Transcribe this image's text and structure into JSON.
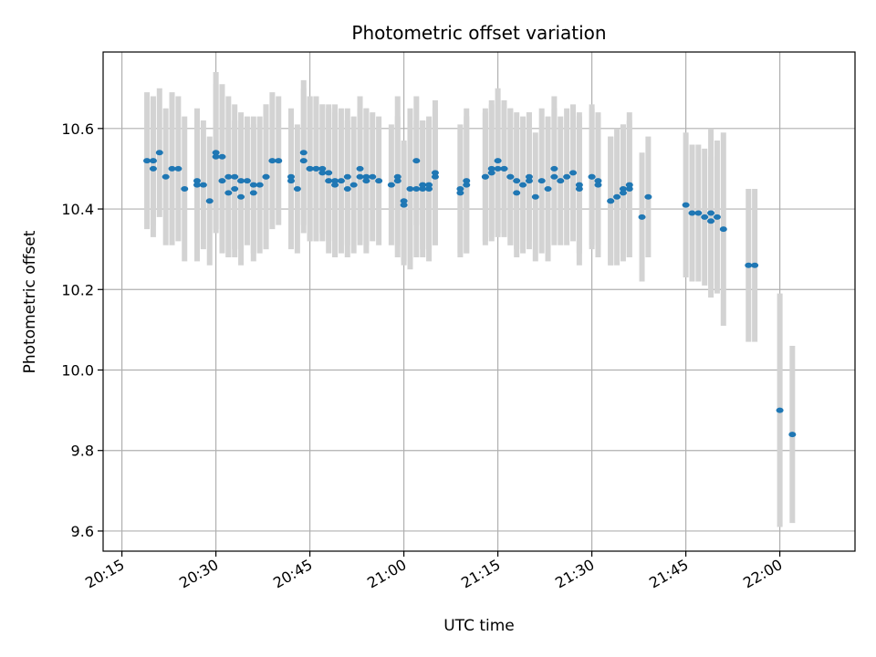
{
  "chart_data": {
    "type": "scatter",
    "title": "Photometric offset variation",
    "xlabel": "UTC time",
    "ylabel": "Photometric offset",
    "xlim": [
      "20:12",
      "22:12"
    ],
    "ylim": [
      9.55,
      10.79
    ],
    "x_ticks": [
      "20:15",
      "20:30",
      "20:45",
      "21:00",
      "21:15",
      "21:30",
      "21:45",
      "22:00"
    ],
    "y_ticks": [
      "9.6",
      "9.8",
      "10.0",
      "10.2",
      "10.4",
      "10.6"
    ],
    "grid": true,
    "colors": {
      "point": "#1f77b4",
      "errorbar": "#d3d3d3",
      "grid": "#b0b0b0"
    },
    "series": [
      {
        "x": [
          "20:19",
          "20:20",
          "20:20",
          "20:21",
          "20:22",
          "20:23",
          "20:24",
          "20:25",
          "20:27",
          "20:27",
          "20:28",
          "20:29",
          "20:30",
          "20:30",
          "20:31",
          "20:31",
          "20:32",
          "20:32",
          "20:33",
          "20:33",
          "20:34",
          "20:34",
          "20:35",
          "20:36",
          "20:36",
          "20:37",
          "20:38",
          "20:38",
          "20:39",
          "20:40",
          "20:42",
          "20:42",
          "20:43",
          "20:44",
          "20:44",
          "20:45",
          "20:45",
          "20:46",
          "20:46",
          "20:47",
          "20:47",
          "20:48",
          "20:48",
          "20:49",
          "20:49",
          "20:50",
          "20:51",
          "20:51",
          "20:52",
          "20:53",
          "20:53",
          "20:54",
          "20:54",
          "20:55",
          "20:56",
          "20:58",
          "20:59",
          "20:59",
          "21:00",
          "21:00",
          "21:01",
          "21:02",
          "21:02",
          "21:03",
          "21:03",
          "21:04",
          "21:04",
          "21:05",
          "21:05",
          "21:09",
          "21:09",
          "21:10",
          "21:10",
          "21:13",
          "21:13",
          "21:14",
          "21:14",
          "21:15",
          "21:15",
          "21:16",
          "21:16",
          "21:17",
          "21:17",
          "21:18",
          "21:18",
          "21:19",
          "21:20",
          "21:20",
          "21:21",
          "21:22",
          "21:23",
          "21:24",
          "21:24",
          "21:25",
          "21:26",
          "21:27",
          "21:28",
          "21:28",
          "21:30",
          "21:30",
          "21:31",
          "21:31",
          "21:33",
          "21:33",
          "21:34",
          "21:35",
          "21:35",
          "21:36",
          "21:36",
          "21:38",
          "21:39",
          "21:45",
          "21:46",
          "21:47",
          "21:48",
          "21:49",
          "21:49",
          "21:50",
          "21:51",
          "21:55",
          "21:56",
          "22:00",
          "22:02"
        ],
        "y": [
          10.52,
          10.5,
          10.52,
          10.54,
          10.48,
          10.5,
          10.5,
          10.45,
          10.47,
          10.46,
          10.46,
          10.42,
          10.53,
          10.54,
          10.53,
          10.47,
          10.48,
          10.44,
          10.45,
          10.48,
          10.47,
          10.43,
          10.47,
          10.44,
          10.46,
          10.46,
          10.48,
          10.48,
          10.52,
          10.52,
          10.47,
          10.48,
          10.45,
          10.54,
          10.52,
          10.5,
          10.5,
          10.5,
          10.5,
          10.5,
          10.49,
          10.49,
          10.47,
          10.46,
          10.47,
          10.47,
          10.48,
          10.45,
          10.46,
          10.48,
          10.5,
          10.48,
          10.47,
          10.48,
          10.47,
          10.46,
          10.47,
          10.48,
          10.41,
          10.42,
          10.45,
          10.52,
          10.45,
          10.45,
          10.46,
          10.45,
          10.46,
          10.49,
          10.48,
          10.45,
          10.44,
          10.47,
          10.46,
          10.48,
          10.48,
          10.49,
          10.5,
          10.52,
          10.5,
          10.5,
          10.5,
          10.48,
          10.48,
          10.47,
          10.44,
          10.46,
          10.47,
          10.48,
          10.43,
          10.47,
          10.45,
          10.5,
          10.48,
          10.47,
          10.48,
          10.49,
          10.45,
          10.46,
          10.48,
          10.48,
          10.47,
          10.46,
          10.42,
          10.42,
          10.43,
          10.45,
          10.44,
          10.45,
          10.46,
          10.38,
          10.43,
          10.41,
          10.39,
          10.39,
          10.38,
          10.37,
          10.39,
          10.38,
          10.35,
          10.26,
          10.26,
          9.9,
          9.84
        ],
        "err": [
          0.17,
          0.17,
          0.16,
          0.16,
          0.17,
          0.19,
          0.18,
          0.18,
          0.17,
          0.19,
          0.16,
          0.16,
          0.18,
          0.2,
          0.18,
          0.18,
          0.2,
          0.16,
          0.17,
          0.18,
          0.17,
          0.17,
          0.16,
          0.17,
          0.17,
          0.17,
          0.18,
          0.18,
          0.17,
          0.16,
          0.17,
          0.17,
          0.16,
          0.18,
          0.18,
          0.18,
          0.18,
          0.18,
          0.18,
          0.16,
          0.17,
          0.17,
          0.18,
          0.18,
          0.19,
          0.18,
          0.17,
          0.17,
          0.17,
          0.17,
          0.18,
          0.17,
          0.18,
          0.16,
          0.16,
          0.15,
          0.16,
          0.2,
          0.15,
          0.15,
          0.2,
          0.16,
          0.17,
          0.17,
          0.16,
          0.18,
          0.16,
          0.18,
          0.17,
          0.16,
          0.16,
          0.18,
          0.17,
          0.16,
          0.17,
          0.17,
          0.17,
          0.18,
          0.17,
          0.17,
          0.16,
          0.17,
          0.17,
          0.17,
          0.16,
          0.17,
          0.17,
          0.16,
          0.16,
          0.18,
          0.18,
          0.18,
          0.17,
          0.16,
          0.17,
          0.17,
          0.19,
          0.17,
          0.18,
          0.17,
          0.16,
          0.18,
          0.16,
          0.16,
          0.17,
          0.16,
          0.17,
          0.17,
          0.18,
          0.16,
          0.15,
          0.18,
          0.17,
          0.17,
          0.17,
          0.16,
          0.21,
          0.19,
          0.24,
          0.19,
          0.19,
          0.29,
          0.22
        ]
      }
    ]
  }
}
